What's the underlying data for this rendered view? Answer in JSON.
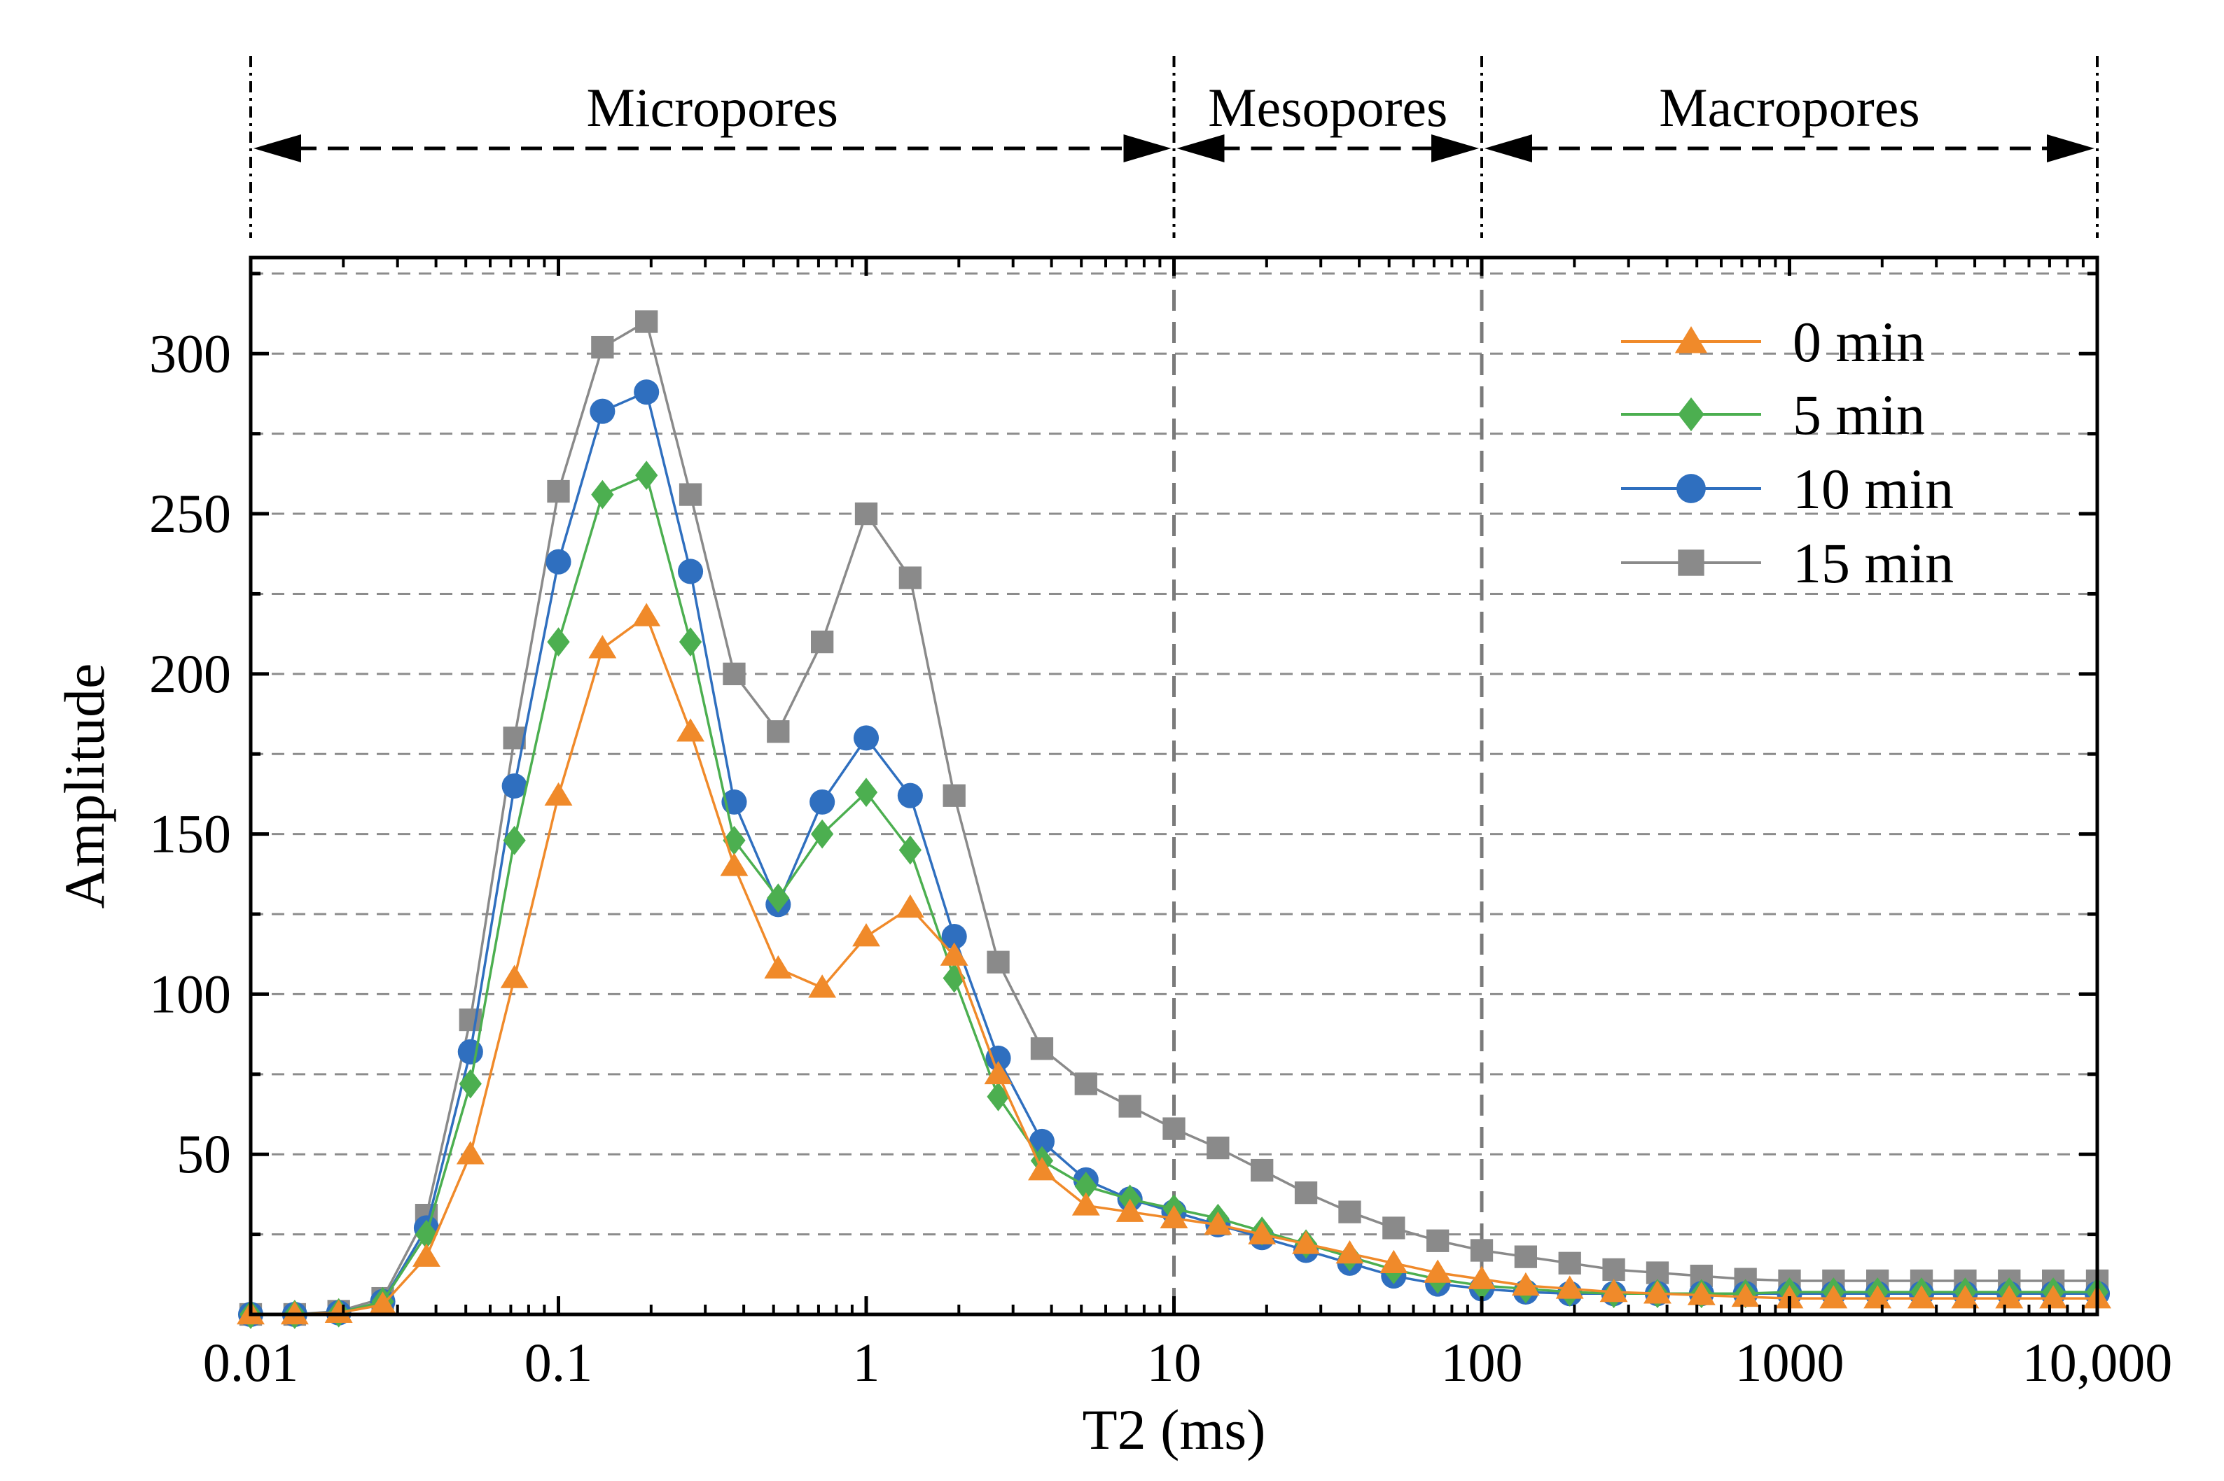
{
  "chart_data": {
    "type": "line",
    "xscale": "log",
    "xlabel": "T2 (ms)",
    "ylabel": "Amplitude",
    "xlim": [
      0.01,
      10000
    ],
    "ylim": [
      0,
      330
    ],
    "xticks": [
      {
        "value": 0.01,
        "label": "0.01"
      },
      {
        "value": 0.1,
        "label": "0.1"
      },
      {
        "value": 1,
        "label": "1"
      },
      {
        "value": 10,
        "label": "10"
      },
      {
        "value": 100,
        "label": "100"
      },
      {
        "value": 1000,
        "label": "1000"
      },
      {
        "value": 10000,
        "label": "10,000"
      }
    ],
    "yticks": [
      {
        "value": 50,
        "label": "50"
      },
      {
        "value": 100,
        "label": "100"
      },
      {
        "value": 150,
        "label": "150"
      },
      {
        "value": 200,
        "label": "200"
      },
      {
        "value": 250,
        "label": "250"
      },
      {
        "value": 300,
        "label": "300"
      }
    ],
    "ygrid_values": [
      25,
      50,
      75,
      100,
      125,
      150,
      175,
      200,
      225,
      250,
      275,
      300,
      325
    ],
    "region_boundaries": [
      0.01,
      10,
      100,
      10000
    ],
    "regions": [
      {
        "label": "Micropores",
        "from": 0.01,
        "to": 10
      },
      {
        "label": "Mesopores",
        "from": 10,
        "to": 100
      },
      {
        "label": "Macropores",
        "from": 100,
        "to": 10000
      }
    ],
    "x_log": [
      -2.0,
      -1.857,
      -1.714,
      -1.571,
      -1.429,
      -1.286,
      -1.143,
      -1.0,
      -0.857,
      -0.714,
      -0.571,
      -0.429,
      -0.286,
      -0.143,
      0.0,
      0.143,
      0.286,
      0.429,
      0.571,
      0.714,
      0.857,
      1.0,
      1.143,
      1.286,
      1.429,
      1.571,
      1.714,
      1.857,
      2.0,
      2.143,
      2.286,
      2.429,
      2.571,
      2.714,
      2.857,
      3.0,
      3.143,
      3.286,
      3.429,
      3.571,
      3.714,
      3.857,
      4.0
    ],
    "series": [
      {
        "name": "0 min",
        "color": "#f08a2a",
        "marker": "triangle",
        "values": [
          0,
          0,
          0.5,
          3,
          18,
          50,
          105,
          162,
          208,
          218,
          182,
          140,
          108,
          102,
          118,
          127,
          112,
          75,
          45,
          34,
          32,
          30,
          28,
          25,
          22,
          19,
          16,
          13,
          11,
          9,
          8,
          7,
          6.5,
          6,
          5.5,
          5,
          5,
          5,
          5,
          5,
          5,
          5,
          5
        ]
      },
      {
        "name": "5 min",
        "color": "#4caf50",
        "marker": "diamond",
        "values": [
          0,
          0,
          0.5,
          4,
          25,
          72,
          148,
          210,
          256,
          262,
          210,
          148,
          130,
          150,
          163,
          145,
          105,
          68,
          48,
          40,
          36,
          33,
          30,
          26,
          22,
          18,
          14,
          11,
          9,
          8,
          7,
          6.5,
          6.5,
          6.5,
          6.5,
          7,
          7,
          7,
          7,
          7,
          7,
          7,
          7
        ]
      },
      {
        "name": "10 min",
        "color": "#2f6fbf",
        "marker": "circle",
        "values": [
          0,
          0,
          0.5,
          4,
          27,
          82,
          165,
          235,
          282,
          288,
          232,
          160,
          128,
          160,
          180,
          162,
          118,
          80,
          54,
          42,
          36,
          32,
          28,
          24,
          20,
          16,
          12,
          9.5,
          8,
          7,
          6.5,
          6.5,
          6.5,
          6.5,
          6.5,
          6.5,
          6.5,
          6.5,
          6.5,
          6.5,
          6.5,
          6.5,
          6.5
        ]
      },
      {
        "name": "15 min",
        "color": "#8a8a8a",
        "marker": "square",
        "values": [
          0,
          0,
          1,
          5,
          31,
          92,
          180,
          257,
          302,
          310,
          256,
          200,
          182,
          210,
          250,
          230,
          162,
          110,
          83,
          72,
          65,
          58,
          52,
          45,
          38,
          32,
          27,
          23,
          20,
          18,
          16,
          14,
          13,
          12,
          11,
          10.5,
          10.5,
          10.5,
          10.5,
          10.5,
          10.5,
          10.5,
          10.5
        ]
      }
    ]
  }
}
